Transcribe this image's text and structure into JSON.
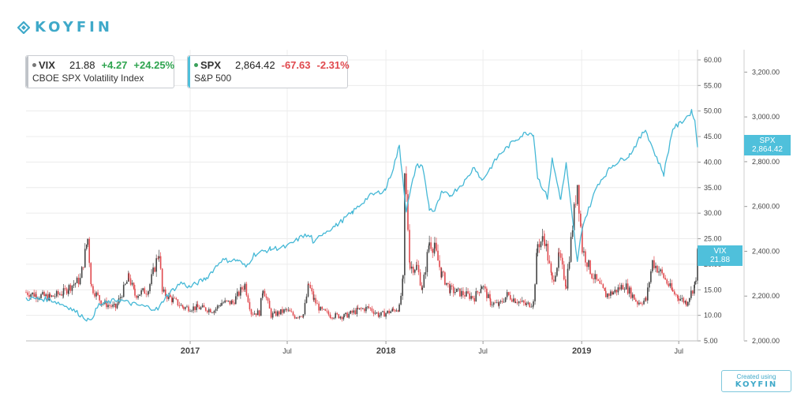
{
  "brand": {
    "name": "KOYFIN"
  },
  "legend": {
    "vix": {
      "symbol": "VIX",
      "price": "21.88",
      "change": "+4.27",
      "change_pct": "+24.25%",
      "name": "CBOE SPX Volatility Index",
      "color": "#777777",
      "direction": "up"
    },
    "spx": {
      "symbol": "SPX",
      "price": "2,864.42",
      "change": "-67.63",
      "change_pct": "-2.31%",
      "name": "S&P 500",
      "color": "#3aa05a",
      "direction": "down"
    }
  },
  "badges": {
    "vix": {
      "symbol": "VIX",
      "value": "21.88"
    },
    "spx": {
      "symbol": "SPX",
      "value": "2,864.42"
    }
  },
  "footer": {
    "created_label": "Created using",
    "brand": "KOYFIN"
  },
  "colors": {
    "spx_line": "#45b8d6",
    "vix_up": "#444444",
    "vix_down": "#e0484d",
    "badge": "#4fc0db",
    "brand": "#3fa9c9"
  },
  "chart_data": {
    "type": "line",
    "x_type": "date",
    "x_range": [
      "2016-03-01",
      "2019-08-05"
    ],
    "x_ticks": [
      {
        "date": "2017-01-01",
        "label": "2017",
        "major": true
      },
      {
        "date": "2017-07-01",
        "label": "Jul",
        "major": false
      },
      {
        "date": "2018-01-01",
        "label": "2018",
        "major": true
      },
      {
        "date": "2018-07-01",
        "label": "Jul",
        "major": false
      },
      {
        "date": "2019-01-01",
        "label": "2019",
        "major": true
      },
      {
        "date": "2019-07-01",
        "label": "Jul",
        "major": false
      }
    ],
    "grid": true,
    "axes": {
      "vix": {
        "position": "right",
        "range": [
          5,
          62
        ],
        "ticks": [
          "5.00",
          "10.00",
          "15.00",
          "20.00",
          "25.00",
          "30.00",
          "35.00",
          "40.00",
          "45.00",
          "50.00",
          "55.00",
          "60.00"
        ]
      },
      "spx": {
        "position": "right-outer",
        "range": [
          2000,
          3300
        ],
        "ticks": [
          "2,000.00",
          "2,200.00",
          "2,400.00",
          "2,600.00",
          "2,800.00",
          "3,000.00",
          "3,200.00"
        ]
      }
    },
    "series": [
      {
        "name": "SPX",
        "style": "line",
        "axis": "spx",
        "points": [
          [
            "2016-03-01",
            2190
          ],
          [
            "2016-04-15",
            2185
          ],
          [
            "2016-05-20",
            2150
          ],
          [
            "2016-06-24",
            2095
          ],
          [
            "2016-06-27",
            2085
          ],
          [
            "2016-07-15",
            2160
          ],
          [
            "2016-08-20",
            2185
          ],
          [
            "2016-09-15",
            2165
          ],
          [
            "2016-10-15",
            2150
          ],
          [
            "2016-11-03",
            2140
          ],
          [
            "2016-11-15",
            2195
          ],
          [
            "2016-12-15",
            2260
          ],
          [
            "2016-12-31",
            2240
          ],
          [
            "2017-01-31",
            2280
          ],
          [
            "2017-02-28",
            2360
          ],
          [
            "2017-03-31",
            2360
          ],
          [
            "2017-04-15",
            2330
          ],
          [
            "2017-04-30",
            2385
          ],
          [
            "2017-05-31",
            2410
          ],
          [
            "2017-06-30",
            2420
          ],
          [
            "2017-07-31",
            2470
          ],
          [
            "2017-08-15",
            2465
          ],
          [
            "2017-08-20",
            2430
          ],
          [
            "2017-09-01",
            2475
          ],
          [
            "2017-09-30",
            2515
          ],
          [
            "2017-10-31",
            2575
          ],
          [
            "2017-11-30",
            2645
          ],
          [
            "2017-12-31",
            2675
          ],
          [
            "2018-01-15",
            2775
          ],
          [
            "2018-01-26",
            2870
          ],
          [
            "2018-02-08",
            2580
          ],
          [
            "2018-02-26",
            2780
          ],
          [
            "2018-03-10",
            2785
          ],
          [
            "2018-03-23",
            2590
          ],
          [
            "2018-04-02",
            2580
          ],
          [
            "2018-04-15",
            2660
          ],
          [
            "2018-05-01",
            2650
          ],
          [
            "2018-05-31",
            2720
          ],
          [
            "2018-06-15",
            2780
          ],
          [
            "2018-06-29",
            2715
          ],
          [
            "2018-07-31",
            2830
          ],
          [
            "2018-08-31",
            2900
          ],
          [
            "2018-09-20",
            2930
          ],
          [
            "2018-10-03",
            2925
          ],
          [
            "2018-10-11",
            2730
          ],
          [
            "2018-10-29",
            2640
          ],
          [
            "2018-11-07",
            2810
          ],
          [
            "2018-11-23",
            2630
          ],
          [
            "2018-12-03",
            2790
          ],
          [
            "2018-12-24",
            2350
          ],
          [
            "2019-01-02",
            2510
          ],
          [
            "2019-01-31",
            2700
          ],
          [
            "2019-02-28",
            2785
          ],
          [
            "2019-03-31",
            2830
          ],
          [
            "2019-04-30",
            2945
          ],
          [
            "2019-05-15",
            2850
          ],
          [
            "2019-06-03",
            2745
          ],
          [
            "2019-06-20",
            2950
          ],
          [
            "2019-07-01",
            2965
          ],
          [
            "2019-07-26",
            3025
          ],
          [
            "2019-07-31",
            2980
          ],
          [
            "2019-08-02",
            2935
          ],
          [
            "2019-08-05",
            2864.42
          ]
        ]
      },
      {
        "name": "VIX",
        "style": "candlestick",
        "axis": "vix",
        "points": [
          [
            "2016-03-01",
            14.5
          ],
          [
            "2016-03-20",
            14.0
          ],
          [
            "2016-04-15",
            13.5
          ],
          [
            "2016-05-10",
            14.5
          ],
          [
            "2016-05-20",
            15.5
          ],
          [
            "2016-06-10",
            17.0
          ],
          [
            "2016-06-24",
            25.0
          ],
          [
            "2016-07-01",
            15.5
          ],
          [
            "2016-07-20",
            12.5
          ],
          [
            "2016-08-15",
            11.5
          ],
          [
            "2016-09-09",
            17.5
          ],
          [
            "2016-09-20",
            14.0
          ],
          [
            "2016-10-15",
            15.0
          ],
          [
            "2016-11-04",
            22.5
          ],
          [
            "2016-11-10",
            14.5
          ],
          [
            "2016-11-30",
            13.0
          ],
          [
            "2016-12-20",
            11.5
          ],
          [
            "2017-01-15",
            11.5
          ],
          [
            "2017-02-15",
            11.0
          ],
          [
            "2017-03-01",
            12.5
          ],
          [
            "2017-03-21",
            12.5
          ],
          [
            "2017-04-13",
            16.0
          ],
          [
            "2017-04-25",
            10.5
          ],
          [
            "2017-05-10",
            10.5
          ],
          [
            "2017-05-17",
            15.5
          ],
          [
            "2017-06-01",
            10.0
          ],
          [
            "2017-06-30",
            11.0
          ],
          [
            "2017-07-15",
            9.8
          ],
          [
            "2017-07-31",
            10.2
          ],
          [
            "2017-08-10",
            16.0
          ],
          [
            "2017-08-20",
            13.0
          ],
          [
            "2017-09-01",
            11.0
          ],
          [
            "2017-09-20",
            10.0
          ],
          [
            "2017-10-15",
            9.8
          ],
          [
            "2017-11-10",
            11.0
          ],
          [
            "2017-11-30",
            11.5
          ],
          [
            "2017-12-20",
            10.0
          ],
          [
            "2018-01-15",
            11.0
          ],
          [
            "2018-01-26",
            11.5
          ],
          [
            "2018-02-02",
            17.0
          ],
          [
            "2018-02-05",
            37.0
          ],
          [
            "2018-02-08",
            33.0
          ],
          [
            "2018-02-15",
            19.5
          ],
          [
            "2018-02-28",
            19.5
          ],
          [
            "2018-03-10",
            15.0
          ],
          [
            "2018-03-23",
            24.5
          ],
          [
            "2018-04-02",
            23.0
          ],
          [
            "2018-04-15",
            18.0
          ],
          [
            "2018-05-01",
            15.0
          ],
          [
            "2018-05-31",
            14.0
          ],
          [
            "2018-06-15",
            13.5
          ],
          [
            "2018-06-29",
            16.0
          ],
          [
            "2018-07-15",
            12.5
          ],
          [
            "2018-07-31",
            12.0
          ],
          [
            "2018-08-15",
            14.0
          ],
          [
            "2018-08-31",
            13.0
          ],
          [
            "2018-09-20",
            12.0
          ],
          [
            "2018-10-03",
            12.5
          ],
          [
            "2018-10-11",
            24.0
          ],
          [
            "2018-10-24",
            25.0
          ],
          [
            "2018-11-07",
            16.5
          ],
          [
            "2018-11-20",
            21.5
          ],
          [
            "2018-12-03",
            16.0
          ],
          [
            "2018-12-24",
            36.0
          ],
          [
            "2019-01-02",
            23.0
          ],
          [
            "2019-01-20",
            18.0
          ],
          [
            "2019-02-15",
            14.0
          ],
          [
            "2019-03-01",
            14.5
          ],
          [
            "2019-03-22",
            16.0
          ],
          [
            "2019-04-15",
            12.5
          ],
          [
            "2019-05-01",
            13.0
          ],
          [
            "2019-05-13",
            20.5
          ],
          [
            "2019-06-03",
            17.5
          ],
          [
            "2019-06-20",
            14.5
          ],
          [
            "2019-07-01",
            13.5
          ],
          [
            "2019-07-15",
            12.5
          ],
          [
            "2019-07-31",
            16.0
          ],
          [
            "2019-08-02",
            17.6
          ],
          [
            "2019-08-05",
            21.88
          ]
        ]
      }
    ]
  }
}
